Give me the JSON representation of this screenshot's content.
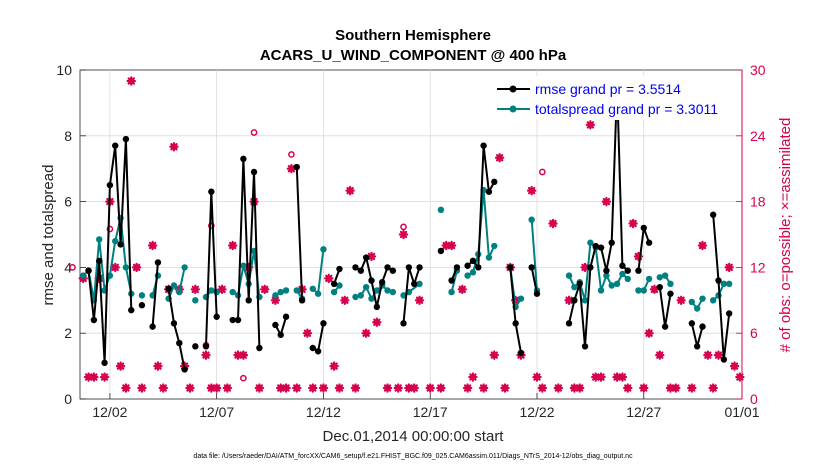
{
  "chart_data": {
    "type": "line",
    "title": "Southern Hemisphere",
    "subtitle": "ACARS_U_WIND_COMPONENT @ 400 hPa",
    "xlabel": "Dec.01,2014 00:00:00 start",
    "ylabel": "rmse and totalspread",
    "ylabel_right": "# of obs: o=possible; ×=assimilated",
    "xlim": [
      0.6,
      31.6
    ],
    "ylim": [
      0,
      10
    ],
    "ylim_right": [
      0,
      30
    ],
    "x_ticks": [
      {
        "value": 2,
        "label": "12/02"
      },
      {
        "value": 7,
        "label": "12/07"
      },
      {
        "value": 12,
        "label": "12/12"
      },
      {
        "value": 17,
        "label": "12/17"
      },
      {
        "value": 22,
        "label": "12/22"
      },
      {
        "value": 27,
        "label": "12/27"
      },
      {
        "value": 32,
        "label": "01/01"
      }
    ],
    "y_ticks": [
      0,
      2,
      4,
      6,
      8,
      10
    ],
    "y_ticks_right": [
      0,
      6,
      12,
      18,
      24,
      30
    ],
    "legend": {
      "position": "top-right",
      "entries": [
        "rmse grand pr = 3.5514",
        "totalspread grand pr = 3.3011"
      ]
    },
    "series": [
      {
        "name": "rmse grand pr = 3.5514",
        "color": "#000000",
        "segments": [
          [
            [
              1.0,
              3.9
            ],
            [
              1.25,
              2.4
            ],
            [
              1.5,
              4.2
            ],
            [
              1.75,
              1.1
            ],
            [
              2.0,
              6.5
            ],
            [
              2.25,
              7.7
            ],
            [
              2.5,
              4.7
            ],
            [
              2.75,
              7.9
            ],
            [
              3.0,
              2.7
            ]
          ],
          [
            [
              3.5,
              2.85
            ]
          ],
          [
            [
              4.0,
              2.2
            ],
            [
              4.25,
              4.15
            ]
          ],
          [
            [
              4.75,
              3.35
            ],
            [
              5.0,
              2.3
            ],
            [
              5.25,
              1.7
            ],
            [
              5.5,
              0.9
            ]
          ],
          [
            [
              6.0,
              1.6
            ]
          ],
          [
            [
              6.5,
              1.6
            ],
            [
              6.75,
              6.3
            ],
            [
              7.0,
              2.5
            ]
          ],
          [
            [
              7.75,
              2.4
            ],
            [
              8.0,
              2.4
            ],
            [
              8.25,
              7.3
            ],
            [
              8.5,
              3.0
            ],
            [
              8.75,
              6.9
            ],
            [
              9.0,
              1.55
            ]
          ],
          [
            [
              9.75,
              2.25
            ],
            [
              10.0,
              1.95
            ],
            [
              10.25,
              2.5
            ]
          ],
          [
            [
              10.75,
              7.05
            ],
            [
              11.0,
              3.0
            ]
          ],
          [
            [
              11.5,
              1.55
            ],
            [
              11.75,
              1.45
            ],
            [
              12.0,
              2.3
            ]
          ],
          [
            [
              12.5,
              3.5
            ],
            [
              12.75,
              3.95
            ]
          ],
          [
            [
              13.5,
              4.0
            ],
            [
              13.75,
              3.9
            ],
            [
              14.0,
              4.3
            ],
            [
              14.25,
              3.6
            ],
            [
              14.5,
              2.8
            ],
            [
              14.75,
              3.55
            ],
            [
              15.0,
              4.0
            ],
            [
              15.25,
              3.9
            ]
          ],
          [
            [
              15.75,
              2.3
            ],
            [
              16.0,
              4.0
            ],
            [
              16.25,
              3.5
            ],
            [
              16.5,
              4.0
            ]
          ],
          [
            [
              17.5,
              4.5
            ]
          ],
          [
            [
              18.0,
              3.6
            ],
            [
              18.25,
              4.0
            ]
          ],
          [
            [
              18.75,
              4.05
            ],
            [
              19.0,
              4.2
            ],
            [
              19.25,
              4.0
            ],
            [
              19.5,
              7.7
            ],
            [
              19.75,
              6.3
            ],
            [
              20.0,
              6.6
            ]
          ],
          [
            [
              20.75,
              4.0
            ],
            [
              21.0,
              2.3
            ],
            [
              21.25,
              1.4
            ]
          ],
          [
            [
              21.75,
              4.0
            ],
            [
              22.0,
              3.2
            ]
          ],
          [
            [
              23.5,
              2.3
            ],
            [
              23.75,
              3.0
            ],
            [
              24.0,
              3.5
            ],
            [
              24.25,
              1.6
            ],
            [
              24.5,
              4.0
            ],
            [
              24.75,
              4.65
            ],
            [
              25.0,
              4.6
            ],
            [
              25.25,
              3.9
            ],
            [
              25.5,
              4.75
            ],
            [
              25.75,
              9.55
            ],
            [
              26.0,
              4.05
            ],
            [
              26.25,
              3.9
            ]
          ],
          [
            [
              26.75,
              3.9
            ],
            [
              27.0,
              5.2
            ],
            [
              27.25,
              4.75
            ]
          ],
          [
            [
              27.75,
              3.4
            ],
            [
              28.0,
              2.2
            ],
            [
              28.25,
              3.2
            ]
          ],
          [
            [
              29.25,
              2.3
            ],
            [
              29.5,
              1.6
            ],
            [
              29.75,
              2.2
            ]
          ],
          [
            [
              30.25,
              5.6
            ],
            [
              30.5,
              3.6
            ],
            [
              30.75,
              1.2
            ],
            [
              31.0,
              2.6
            ]
          ]
        ]
      },
      {
        "name": "totalspread grand pr = 3.3011",
        "color": "#008080",
        "segments": [
          [
            [
              0.75,
              3.75
            ],
            [
              1.0,
              3.9
            ],
            [
              1.25,
              3.0
            ],
            [
              1.5,
              4.85
            ],
            [
              1.75,
              3.3
            ],
            [
              2.0,
              3.75
            ],
            [
              2.25,
              4.8
            ],
            [
              2.5,
              5.5
            ],
            [
              2.75,
              4.0
            ],
            [
              3.0,
              3.2
            ]
          ],
          [
            [
              3.5,
              3.15
            ]
          ],
          [
            [
              4.0,
              3.15
            ],
            [
              4.25,
              3.75
            ]
          ],
          [
            [
              4.75,
              3.05
            ],
            [
              5.0,
              3.45
            ],
            [
              5.25,
              3.25
            ],
            [
              5.5,
              4.0
            ]
          ],
          [
            [
              6.0,
              3.0
            ]
          ],
          [
            [
              6.5,
              3.1
            ],
            [
              6.75,
              3.3
            ],
            [
              7.0,
              3.25
            ]
          ],
          [
            [
              7.75,
              3.25
            ],
            [
              8.0,
              3.15
            ],
            [
              8.25,
              4.05
            ],
            [
              8.5,
              3.5
            ],
            [
              8.75,
              4.5
            ],
            [
              9.0,
              3.1
            ]
          ],
          [
            [
              9.75,
              3.15
            ],
            [
              10.0,
              3.25
            ],
            [
              10.25,
              3.3
            ]
          ],
          [
            [
              10.75,
              3.3
            ],
            [
              11.0,
              3.05
            ]
          ],
          [
            [
              11.5,
              3.35
            ],
            [
              11.75,
              3.2
            ],
            [
              12.0,
              4.55
            ]
          ],
          [
            [
              12.5,
              3.25
            ],
            [
              12.75,
              3.45
            ]
          ],
          [
            [
              13.5,
              3.1
            ],
            [
              13.75,
              3.15
            ],
            [
              14.0,
              3.4
            ],
            [
              14.25,
              3.05
            ],
            [
              14.5,
              3.3
            ],
            [
              14.75,
              3.45
            ],
            [
              15.0,
              3.3
            ],
            [
              15.25,
              3.25
            ]
          ],
          [
            [
              15.75,
              3.15
            ],
            [
              16.0,
              3.25
            ],
            [
              16.5,
              3.5
            ]
          ],
          [
            [
              17.5,
              5.75
            ]
          ],
          [
            [
              18.0,
              3.25
            ],
            [
              18.25,
              3.9
            ]
          ],
          [
            [
              18.75,
              3.75
            ],
            [
              19.0,
              3.85
            ],
            [
              19.25,
              4.4
            ],
            [
              19.5,
              6.35
            ],
            [
              19.75,
              4.3
            ],
            [
              20.0,
              4.65
            ]
          ],
          [
            [
              20.75,
              4.0
            ],
            [
              21.0,
              2.8
            ],
            [
              21.25,
              3.05
            ]
          ],
          [
            [
              21.75,
              5.45
            ],
            [
              22.0,
              3.3
            ]
          ],
          [
            [
              23.5,
              3.75
            ],
            [
              23.75,
              3.4
            ],
            [
              24.0,
              3.55
            ],
            [
              24.25,
              3.0
            ],
            [
              24.5,
              4.75
            ],
            [
              24.75,
              4.6
            ],
            [
              25.0,
              3.3
            ],
            [
              25.25,
              3.75
            ],
            [
              25.5,
              3.45
            ],
            [
              25.75,
              3.5
            ],
            [
              26.0,
              3.8
            ],
            [
              26.25,
              3.65
            ]
          ],
          [
            [
              26.75,
              3.3
            ],
            [
              27.0,
              3.3
            ],
            [
              27.25,
              3.65
            ]
          ],
          [
            [
              27.75,
              3.7
            ],
            [
              28.0,
              3.75
            ],
            [
              28.25,
              3.5
            ]
          ],
          [
            [
              29.25,
              2.95
            ],
            [
              29.5,
              2.75
            ],
            [
              29.75,
              3.05
            ]
          ],
          [
            [
              30.25,
              3.0
            ],
            [
              30.5,
              3.15
            ],
            [
              30.75,
              3.5
            ],
            [
              31.0,
              3.5
            ]
          ]
        ]
      }
    ],
    "obs_possible": [
      [
        2.0,
        15.5
      ],
      [
        8.75,
        24.3
      ],
      [
        10.5,
        22.3
      ],
      [
        15.75,
        15.7
      ],
      [
        22.25,
        20.7
      ],
      [
        6.75,
        15.8
      ],
      [
        8.25,
        1.9
      ],
      [
        6.5,
        4.9
      ],
      [
        0.25,
        12.0
      ]
    ],
    "obs_assimilated": [
      [
        0.75,
        11.0
      ],
      [
        1.0,
        2.0
      ],
      [
        1.25,
        2.0
      ],
      [
        1.5,
        11.0
      ],
      [
        1.75,
        2.0
      ],
      [
        2.0,
        18.0
      ],
      [
        2.25,
        12.0
      ],
      [
        2.5,
        3.0
      ],
      [
        2.75,
        1.0
      ],
      [
        3.0,
        29.0
      ],
      [
        3.25,
        12.0
      ],
      [
        3.5,
        1.0
      ],
      [
        4.0,
        14.0
      ],
      [
        4.25,
        3.0
      ],
      [
        4.5,
        1.0
      ],
      [
        4.75,
        10.0
      ],
      [
        5.0,
        23.0
      ],
      [
        5.25,
        10.0
      ],
      [
        5.5,
        3.0
      ],
      [
        5.75,
        1.0
      ],
      [
        6.0,
        10.0
      ],
      [
        6.5,
        4.0
      ],
      [
        6.75,
        1.0
      ],
      [
        7.0,
        1.0
      ],
      [
        7.25,
        10.0
      ],
      [
        7.5,
        1.0
      ],
      [
        7.75,
        14.0
      ],
      [
        8.0,
        4.0
      ],
      [
        8.25,
        4.0
      ],
      [
        8.5,
        12.0
      ],
      [
        8.75,
        18.0
      ],
      [
        9.0,
        1.0
      ],
      [
        9.25,
        10.0
      ],
      [
        9.75,
        9.0
      ],
      [
        10.0,
        1.0
      ],
      [
        10.25,
        1.0
      ],
      [
        10.5,
        21.0
      ],
      [
        10.75,
        1.0
      ],
      [
        11.0,
        10.0
      ],
      [
        11.25,
        6.0
      ],
      [
        11.5,
        1.0
      ],
      [
        12.0,
        1.0
      ],
      [
        12.25,
        11.0
      ],
      [
        12.5,
        3.0
      ],
      [
        12.75,
        1.0
      ],
      [
        13.0,
        9.0
      ],
      [
        13.25,
        19.0
      ],
      [
        13.5,
        1.0
      ],
      [
        14.0,
        6.0
      ],
      [
        14.25,
        13.0
      ],
      [
        14.5,
        7.0
      ],
      [
        15.0,
        1.0
      ],
      [
        15.5,
        1.0
      ],
      [
        15.75,
        15.0
      ],
      [
        16.0,
        1.0
      ],
      [
        16.25,
        1.0
      ],
      [
        16.5,
        9.0
      ],
      [
        17.0,
        1.0
      ],
      [
        17.5,
        1.0
      ],
      [
        17.75,
        14.0
      ],
      [
        18.0,
        14.0
      ],
      [
        18.5,
        10.0
      ],
      [
        18.75,
        1.0
      ],
      [
        19.0,
        2.0
      ],
      [
        19.5,
        1.0
      ],
      [
        20.0,
        4.0
      ],
      [
        20.25,
        22.0
      ],
      [
        20.5,
        1.0
      ],
      [
        20.75,
        12.0
      ],
      [
        21.0,
        9.0
      ],
      [
        21.25,
        4.0
      ],
      [
        21.75,
        19.0
      ],
      [
        22.0,
        2.0
      ],
      [
        22.25,
        1.0
      ],
      [
        22.75,
        16.0
      ],
      [
        23.0,
        1.0
      ],
      [
        23.5,
        9.0
      ],
      [
        23.75,
        1.0
      ],
      [
        24.0,
        1.0
      ],
      [
        24.25,
        12.0
      ],
      [
        24.5,
        25.0
      ],
      [
        24.75,
        2.0
      ],
      [
        25.0,
        2.0
      ],
      [
        25.25,
        18.0
      ],
      [
        25.75,
        2.0
      ],
      [
        26.0,
        2.0
      ],
      [
        26.25,
        1.0
      ],
      [
        26.5,
        16.0
      ],
      [
        26.75,
        13.0
      ],
      [
        27.0,
        1.0
      ],
      [
        27.25,
        6.0
      ],
      [
        27.5,
        10.0
      ],
      [
        27.75,
        4.0
      ],
      [
        28.25,
        1.0
      ],
      [
        28.5,
        1.0
      ],
      [
        28.75,
        9.0
      ],
      [
        29.25,
        1.0
      ],
      [
        29.75,
        14.0
      ],
      [
        30.0,
        4.0
      ],
      [
        30.25,
        1.0
      ],
      [
        30.5,
        4.0
      ],
      [
        31.0,
        12.0
      ],
      [
        31.25,
        3.0
      ],
      [
        31.5,
        2.0
      ]
    ],
    "footer": "data file: /Users/raeder/DAI/ATM_forcXX/CAM6_setup/f.e21.FHIST_BGC.f09_025.CAM6assim.011/Diags_NTrS_2014-12/obs_diag_output.nc"
  }
}
